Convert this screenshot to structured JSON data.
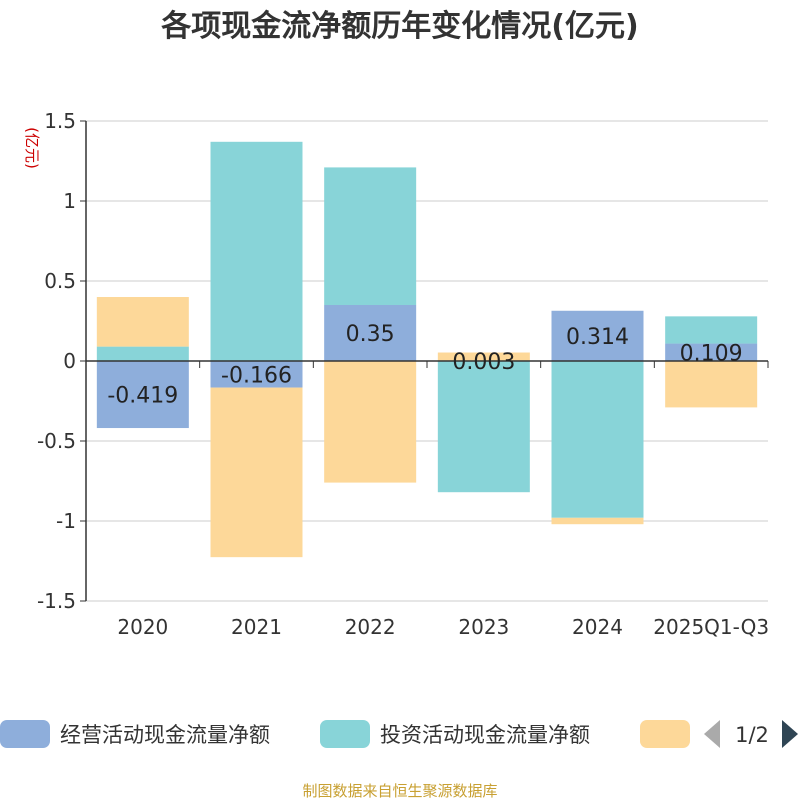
{
  "chart_data": {
    "type": "bar",
    "stacked": true,
    "title": "各项现金流净额历年变化情况(亿元)",
    "ylabel": "(亿元)",
    "xlabel": "",
    "categories": [
      "2020",
      "2021",
      "2022",
      "2023",
      "2024",
      "2025Q1-Q3"
    ],
    "ylim": [
      -1.5,
      1.5
    ],
    "yticks": [
      1.5,
      1,
      0.5,
      0,
      -0.5,
      -1,
      -1.5
    ],
    "ytick_labels": [
      "1.5",
      "1",
      "0.5",
      "0",
      "-0.5",
      "-1",
      "-1.5"
    ],
    "grid": true,
    "legend_position": "bottom",
    "series": [
      {
        "name": "经营活动现金流量净额",
        "color": "#8eaedb",
        "values": [
          -0.419,
          -0.166,
          0.35,
          0.003,
          0.314,
          0.109
        ],
        "labels": [
          "-0.419",
          "-0.166",
          "0.35",
          "0.003",
          "0.314",
          "0.109"
        ]
      },
      {
        "name": "投资活动现金流量净额",
        "color": "#88d4d8",
        "values": [
          0.09,
          1.37,
          0.86,
          -0.82,
          -0.98,
          0.17
        ]
      },
      {
        "name": "",
        "color": "#fdd899",
        "values": [
          0.31,
          -1.06,
          -0.76,
          0.05,
          -0.04,
          -0.29
        ]
      }
    ]
  },
  "legend": {
    "page_indicator": "1/2",
    "prev_icon": "triangle-left-icon",
    "next_icon": "triangle-right-icon"
  },
  "footer": {
    "source": "制图数据来自恒生聚源数据库"
  },
  "colors": {
    "title": "#333333",
    "axis_text": "#333333",
    "ylabel": "#cc0000",
    "grid": "#cccccc",
    "footer": "#c8a032"
  }
}
